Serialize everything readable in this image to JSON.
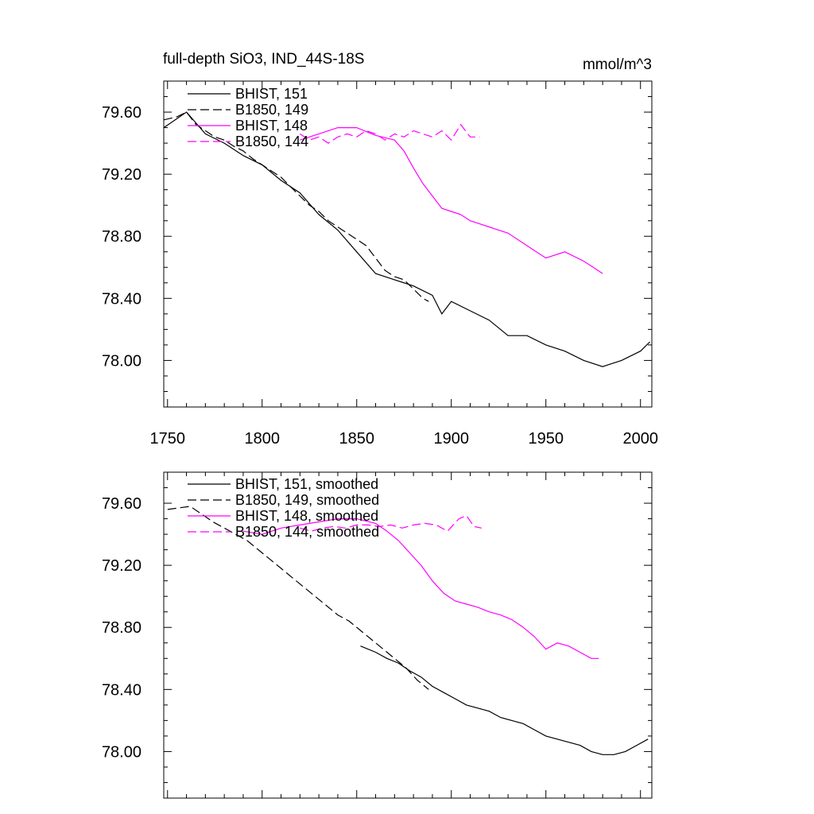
{
  "chart_data": [
    {
      "type": "line",
      "title": "full-depth SiO3, IND_44S-18S",
      "units": "mmol/m^3",
      "xlim": [
        1748,
        2006
      ],
      "ylim": [
        77.7,
        79.8
      ],
      "xticks": [
        1750,
        1800,
        1850,
        1900,
        1950,
        2000
      ],
      "xtick_labels": [
        "1750",
        "1800",
        "1850",
        "1900",
        "1950",
        "2000"
      ],
      "yticks": [
        78.0,
        78.4,
        78.8,
        79.2,
        79.6
      ],
      "ytick_labels": [
        "78.00",
        "78.40",
        "78.80",
        "79.20",
        "79.60"
      ],
      "grid": false,
      "legend_position": "top-left",
      "series": [
        {
          "name": "BHIST, 151",
          "color": "#000000",
          "dash": "solid",
          "x": [
            1748,
            1760,
            1770,
            1780,
            1790,
            1800,
            1810,
            1820,
            1830,
            1840,
            1850,
            1860,
            1870,
            1880,
            1890,
            1895,
            1900,
            1910,
            1920,
            1930,
            1940,
            1950,
            1960,
            1970,
            1980,
            1990,
            2000,
            2005
          ],
          "y": [
            79.5,
            79.6,
            79.46,
            79.4,
            79.32,
            79.26,
            79.16,
            79.08,
            78.94,
            78.84,
            78.7,
            78.56,
            78.52,
            78.48,
            78.42,
            78.3,
            78.38,
            78.32,
            78.26,
            78.16,
            78.16,
            78.1,
            78.06,
            78.0,
            77.96,
            78.0,
            78.06,
            78.12
          ]
        },
        {
          "name": "B1850, 149",
          "color": "#000000",
          "dash": "dashed",
          "x": [
            1748,
            1755,
            1760,
            1765,
            1770,
            1775,
            1780,
            1785,
            1790,
            1795,
            1800,
            1805,
            1810,
            1815,
            1820,
            1825,
            1830,
            1835,
            1840,
            1845,
            1850,
            1855,
            1860,
            1865,
            1870,
            1875,
            1880,
            1885,
            1888
          ],
          "y": [
            79.55,
            79.57,
            79.6,
            79.52,
            79.48,
            79.44,
            79.42,
            79.38,
            79.35,
            79.3,
            79.26,
            79.22,
            79.18,
            79.12,
            79.06,
            79.0,
            78.96,
            78.9,
            78.86,
            78.82,
            78.78,
            78.74,
            78.66,
            78.58,
            78.54,
            78.52,
            78.46,
            78.4,
            78.38
          ]
        },
        {
          "name": "BHIST, 148",
          "color": "#ff00ff",
          "dash": "solid",
          "x": [
            1820,
            1830,
            1840,
            1850,
            1860,
            1870,
            1875,
            1880,
            1885,
            1890,
            1895,
            1900,
            1905,
            1910,
            1915,
            1920,
            1925,
            1930,
            1940,
            1950,
            1960,
            1970,
            1975,
            1980
          ],
          "y": [
            79.42,
            79.46,
            79.5,
            79.5,
            79.45,
            79.42,
            79.35,
            79.24,
            79.14,
            79.06,
            78.98,
            78.96,
            78.94,
            78.9,
            78.88,
            78.86,
            78.84,
            78.82,
            78.74,
            78.66,
            78.7,
            78.64,
            78.6,
            78.56
          ]
        },
        {
          "name": "B1850, 144",
          "color": "#ff00ff",
          "dash": "dashed",
          "x": [
            1820,
            1825,
            1830,
            1835,
            1840,
            1845,
            1850,
            1855,
            1860,
            1865,
            1870,
            1875,
            1880,
            1885,
            1890,
            1895,
            1900,
            1905,
            1910,
            1915
          ],
          "y": [
            79.46,
            79.42,
            79.44,
            79.4,
            79.44,
            79.46,
            79.44,
            79.48,
            79.46,
            79.42,
            79.46,
            79.44,
            79.48,
            79.46,
            79.44,
            79.48,
            79.42,
            79.52,
            79.44,
            79.44
          ]
        }
      ]
    },
    {
      "type": "line",
      "title": "",
      "xlim": [
        1748,
        2006
      ],
      "ylim": [
        77.7,
        79.8
      ],
      "xticks": [
        1750,
        1800,
        1850,
        1900,
        1950,
        2000
      ],
      "yticks": [
        78.0,
        78.4,
        78.8,
        79.2,
        79.6
      ],
      "ytick_labels": [
        "78.00",
        "78.40",
        "78.80",
        "79.20",
        "79.60"
      ],
      "grid": false,
      "legend_position": "top-left",
      "series": [
        {
          "name": "BHIST, 151, smoothed",
          "color": "#000000",
          "dash": "solid",
          "x": [
            1852,
            1860,
            1866,
            1872,
            1878,
            1884,
            1890,
            1896,
            1902,
            1908,
            1914,
            1920,
            1926,
            1932,
            1938,
            1944,
            1950,
            1956,
            1962,
            1968,
            1974,
            1980,
            1986,
            1992,
            1998,
            2004
          ],
          "y": [
            78.68,
            78.64,
            78.6,
            78.57,
            78.52,
            78.48,
            78.42,
            78.38,
            78.34,
            78.3,
            78.28,
            78.26,
            78.22,
            78.2,
            78.18,
            78.14,
            78.1,
            78.08,
            78.06,
            78.04,
            78.0,
            77.98,
            77.98,
            78.0,
            78.04,
            78.08
          ]
        },
        {
          "name": "B1850, 149, smoothed",
          "color": "#000000",
          "dash": "dashed",
          "x": [
            1750,
            1756,
            1762,
            1768,
            1774,
            1780,
            1786,
            1792,
            1798,
            1804,
            1810,
            1816,
            1822,
            1828,
            1834,
            1840,
            1846,
            1852,
            1858,
            1864,
            1870,
            1876,
            1882,
            1888
          ],
          "y": [
            79.56,
            79.57,
            79.58,
            79.53,
            79.48,
            79.44,
            79.4,
            79.36,
            79.3,
            79.24,
            79.18,
            79.12,
            79.06,
            79.0,
            78.94,
            78.88,
            78.84,
            78.78,
            78.72,
            78.66,
            78.6,
            78.54,
            78.46,
            78.4
          ]
        },
        {
          "name": "BHIST, 148, smoothed",
          "color": "#ff00ff",
          "dash": "solid",
          "x": [
            1790,
            1800,
            1810,
            1820,
            1830,
            1840,
            1850,
            1860,
            1866,
            1872,
            1878,
            1884,
            1890,
            1896,
            1902,
            1908,
            1914,
            1920,
            1926,
            1932,
            1938,
            1944,
            1950,
            1956,
            1962,
            1968,
            1974,
            1978
          ],
          "y": [
            79.42,
            79.4,
            79.44,
            79.46,
            79.48,
            79.5,
            79.5,
            79.47,
            79.42,
            79.36,
            79.28,
            79.2,
            79.1,
            79.02,
            78.97,
            78.95,
            78.93,
            78.9,
            78.88,
            78.85,
            78.8,
            78.74,
            78.66,
            78.7,
            78.68,
            78.64,
            78.6,
            78.6
          ]
        },
        {
          "name": "B1850, 144, smoothed",
          "color": "#ff00ff",
          "dash": "dashed",
          "x": [
            1820,
            1826,
            1832,
            1838,
            1844,
            1850,
            1856,
            1862,
            1868,
            1874,
            1880,
            1886,
            1892,
            1898,
            1904,
            1908,
            1912,
            1916
          ],
          "y": [
            79.44,
            79.42,
            79.44,
            79.45,
            79.44,
            79.46,
            79.46,
            79.45,
            79.46,
            79.44,
            79.46,
            79.47,
            79.46,
            79.42,
            79.5,
            79.52,
            79.45,
            79.44
          ]
        }
      ]
    }
  ]
}
